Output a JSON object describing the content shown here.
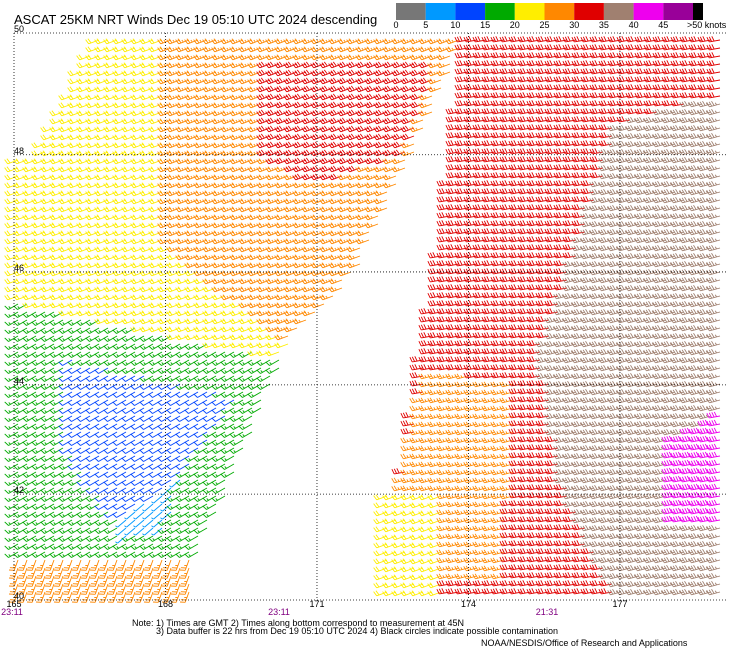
{
  "title": "ASCAT 25KM NRT Winds Dec 19 05:10 UTC 2024 descending",
  "colorbar": {
    "ticks": [
      0,
      5,
      10,
      15,
      20,
      25,
      30,
      35,
      40,
      45
    ],
    "over_label": ">50 knots",
    "colors": [
      "#777777",
      "#0099ff",
      "#0044ff",
      "#00aa00",
      "#ffee00",
      "#ff8800",
      "#e00000",
      "#a08070",
      "#ee00ee",
      "#990099",
      "#000000"
    ]
  },
  "map": {
    "projection": "mercator",
    "xlim": [
      165,
      179.1
    ],
    "ylim": [
      40,
      50
    ],
    "lon_ticks": [
      165,
      168,
      171,
      174,
      177
    ],
    "lat_ticks": [
      40,
      42,
      44,
      46,
      48,
      50
    ],
    "grid": true
  },
  "pass_times": [
    "23:11",
    "23:11",
    "21:31"
  ],
  "notes": [
    "Note: 1) Times are GMT 2) Times along bottom correspond to measurement at 45N",
    "3) Data buffer is 22 hrs from Dec 19 05:10 UTC 2024 4) Black circles indicate possible contamination"
  ],
  "credit": "NOAA/NESDIS/Office of Research and Applications",
  "wind_regions": [
    {
      "speed": 32,
      "direction": 250,
      "polygon": [
        [
          170,
          49.5
        ],
        [
          173.5,
          49.6
        ],
        [
          172.8,
          48
        ],
        [
          171,
          47.5
        ],
        [
          170,
          48
        ]
      ]
    },
    {
      "speed": 27,
      "direction": 250,
      "polygon": [
        [
          168,
          50
        ],
        [
          174,
          50
        ],
        [
          171.8,
          46
        ],
        [
          170.5,
          44.8
        ],
        [
          168,
          46.5
        ]
      ]
    },
    {
      "speed": 12,
      "direction": 240,
      "polygon": [
        [
          166,
          44.5
        ],
        [
          169.5,
          43.8
        ],
        [
          168.3,
          42.3
        ],
        [
          167,
          41.5
        ],
        [
          166,
          43
        ]
      ]
    },
    {
      "speed": 7,
      "direction": 230,
      "polygon": [
        [
          167,
          42.3
        ],
        [
          168.3,
          42.3
        ],
        [
          168,
          41.3
        ],
        [
          167.2,
          41.2
        ]
      ]
    },
    {
      "speed": 22,
      "direction": 250,
      "polygon": [
        [
          166.7,
          50
        ],
        [
          168,
          50
        ],
        [
          168,
          46.5
        ],
        [
          170.5,
          44.8
        ],
        [
          170.2,
          44.5
        ],
        [
          165,
          45.5
        ],
        [
          165,
          48
        ],
        [
          165.5,
          48
        ]
      ]
    },
    {
      "speed": 17,
      "direction": 240,
      "polygon": [
        [
          165,
          45.5
        ],
        [
          170.5,
          44.8
        ],
        [
          169.2,
          42
        ],
        [
          168.6,
          40.8
        ],
        [
          165,
          40.8
        ]
      ]
    },
    {
      "speed": 27,
      "direction": 200,
      "polygon": [
        [
          165,
          40.8
        ],
        [
          168.6,
          40.8
        ],
        [
          168.5,
          40
        ],
        [
          165,
          40
        ]
      ]
    },
    {
      "speed": 42,
      "direction": 260,
      "polygon": [
        [
          178,
          43
        ],
        [
          179.1,
          43.5
        ],
        [
          179.1,
          41.5
        ],
        [
          178,
          41.5
        ]
      ]
    },
    {
      "speed": 37,
      "direction": 255,
      "polygon": [
        [
          177,
          48.5
        ],
        [
          179.1,
          49
        ],
        [
          179.1,
          40
        ],
        [
          177,
          40
        ],
        [
          176,
          42
        ],
        [
          175.5,
          44.5
        ]
      ]
    },
    {
      "speed": 22,
      "direction": 250,
      "polygon": [
        [
          172.3,
          42
        ],
        [
          173.6,
          42
        ],
        [
          173.6,
          40
        ],
        [
          172.3,
          40
        ]
      ]
    },
    {
      "speed": 27,
      "direction": 255,
      "polygon": [
        [
          173.2,
          44.3
        ],
        [
          175,
          44
        ],
        [
          174.8,
          40.4
        ],
        [
          172.3,
          40.3
        ]
      ]
    },
    {
      "speed": 32,
      "direction": 260,
      "polygon": [
        [
          174,
          50
        ],
        [
          179.1,
          50
        ],
        [
          179.1,
          40
        ],
        [
          172.3,
          40
        ],
        [
          173,
          44
        ],
        [
          173.4,
          46
        ]
      ]
    }
  ]
}
